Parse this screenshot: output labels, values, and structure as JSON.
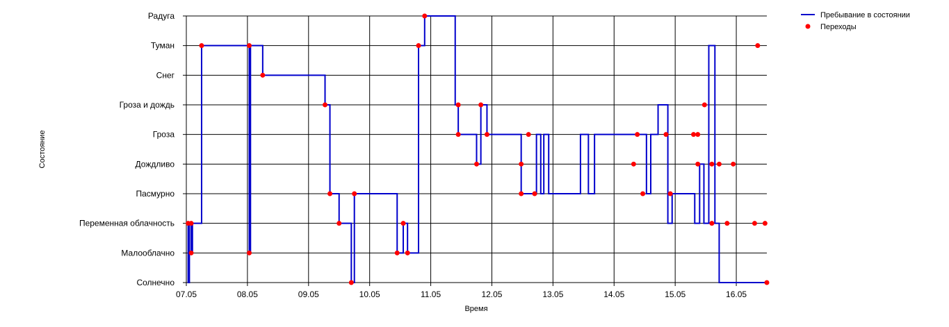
{
  "chart_data": {
    "type": "line",
    "title": "",
    "xlabel": "Время",
    "ylabel": "Состояние",
    "x_tick_labels": [
      "07.05",
      "08.05",
      "09.05",
      "10.05",
      "11.05",
      "12.05",
      "13.05",
      "14.05",
      "15.05",
      "16.05"
    ],
    "xlim": [
      0,
      9.5
    ],
    "y_categories": [
      "Солнечно",
      "Малооблачно",
      "Переменная облачность",
      "Пасмурно",
      "Дождливо",
      "Гроза",
      "Гроза и дождь",
      "Снег",
      "Туман",
      "Радуга"
    ],
    "grid": true,
    "legend_position": "top-right",
    "series": [
      {
        "name": "Пребывание в состоянии",
        "style": "step",
        "color": "#0000cc",
        "x": [
          0.0,
          0.03,
          0.05,
          0.08,
          0.1,
          0.25,
          1.03,
          1.05,
          1.25,
          2.27,
          2.35,
          2.5,
          2.7,
          2.75,
          3.45,
          3.55,
          3.62,
          3.8,
          3.9,
          4.4,
          4.45,
          4.75,
          4.82,
          4.92,
          5.48,
          5.73,
          5.8,
          5.85,
          5.93,
          6.45,
          6.58,
          6.68,
          7.53,
          7.6,
          7.72,
          7.88,
          7.95,
          8.32,
          8.4,
          8.47,
          8.55,
          8.65,
          8.72,
          8.85,
          8.98,
          9.35,
          9.45,
          9.5
        ],
        "y_states": [
          "Переменная облачность",
          "Солнечно",
          "Переменная облачность",
          "Малооблачно",
          "Переменная облачность",
          "Туман",
          "Малооблачно",
          "Туман",
          "Снег",
          "Гроза и дождь",
          "Пасмурно",
          "Переменная облачность",
          "Солнечно",
          "Пасмурно",
          "Малооблачно",
          "Переменная облачность",
          "Малооблачно",
          "Туман",
          "Радуга",
          "Гроза и дождь",
          "Гроза",
          "Дождливо",
          "Гроза и дождь",
          "Гроза",
          "Пасмурно",
          "Гроза",
          "Пасмурно",
          "Гроза",
          "Пасмурно",
          "Гроза",
          "Пасмурно",
          "Гроза",
          "Пасмурно",
          "Гроза",
          "Гроза и дождь",
          "Переменная облачность",
          "Пасмурно",
          "Переменная облачность",
          "Дождливо",
          "Переменная облачность",
          "Туман",
          "Переменная облачность",
          "Солнечно",
          "Солнечно",
          "Солнечно",
          "Солнечно",
          "Солнечно",
          "Солнечно"
        ]
      },
      {
        "name": "Переходы",
        "style": "scatter",
        "color": "#ff0000",
        "points": [
          {
            "x": 0.03,
            "state": "Переменная облачность"
          },
          {
            "x": 0.08,
            "state": "Переменная облачность"
          },
          {
            "x": 0.08,
            "state": "Малооблачно"
          },
          {
            "x": 0.25,
            "state": "Туман"
          },
          {
            "x": 1.03,
            "state": "Туман"
          },
          {
            "x": 1.03,
            "state": "Малооблачно"
          },
          {
            "x": 1.25,
            "state": "Снег"
          },
          {
            "x": 2.27,
            "state": "Гроза и дождь"
          },
          {
            "x": 2.35,
            "state": "Пасмурно"
          },
          {
            "x": 2.5,
            "state": "Переменная облачность"
          },
          {
            "x": 2.7,
            "state": "Солнечно"
          },
          {
            "x": 2.75,
            "state": "Пасмурно"
          },
          {
            "x": 3.45,
            "state": "Малооблачно"
          },
          {
            "x": 3.55,
            "state": "Переменная облачность"
          },
          {
            "x": 3.62,
            "state": "Малооблачно"
          },
          {
            "x": 3.8,
            "state": "Туман"
          },
          {
            "x": 3.9,
            "state": "Радуга"
          },
          {
            "x": 4.45,
            "state": "Гроза и дождь"
          },
          {
            "x": 4.45,
            "state": "Гроза"
          },
          {
            "x": 4.75,
            "state": "Дождливо"
          },
          {
            "x": 4.82,
            "state": "Гроза и дождь"
          },
          {
            "x": 4.92,
            "state": "Гроза"
          },
          {
            "x": 5.48,
            "state": "Дождливо"
          },
          {
            "x": 5.48,
            "state": "Пасмурно"
          },
          {
            "x": 5.6,
            "state": "Гроза"
          },
          {
            "x": 5.7,
            "state": "Пасмурно"
          },
          {
            "x": 7.32,
            "state": "Дождливо"
          },
          {
            "x": 7.38,
            "state": "Гроза"
          },
          {
            "x": 7.47,
            "state": "Пасмурно"
          },
          {
            "x": 7.85,
            "state": "Гроза"
          },
          {
            "x": 7.92,
            "state": "Пасмурно"
          },
          {
            "x": 8.3,
            "state": "Гроза"
          },
          {
            "x": 8.37,
            "state": "Гроза"
          },
          {
            "x": 8.37,
            "state": "Дождливо"
          },
          {
            "x": 8.48,
            "state": "Гроза и дождь"
          },
          {
            "x": 8.6,
            "state": "Дождливо"
          },
          {
            "x": 8.6,
            "state": "Переменная облачность"
          },
          {
            "x": 8.72,
            "state": "Дождливо"
          },
          {
            "x": 8.85,
            "state": "Переменная облачность"
          },
          {
            "x": 8.95,
            "state": "Дождливо"
          },
          {
            "x": 9.3,
            "state": "Переменная облачность"
          },
          {
            "x": 9.35,
            "state": "Туман"
          },
          {
            "x": 9.47,
            "state": "Переменная облачность"
          },
          {
            "x": 9.5,
            "state": "Солнечно"
          }
        ]
      }
    ]
  }
}
